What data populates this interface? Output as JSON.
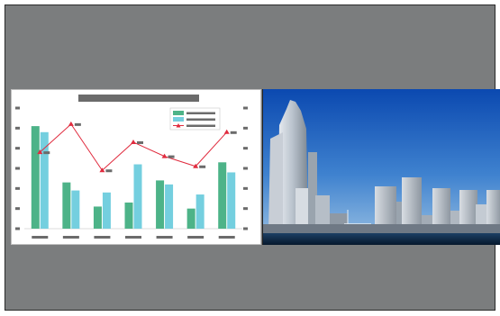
{
  "colors": {
    "screen_bg": "#7b7d7e",
    "pane_bg": "#ffffff",
    "bar_series_a": "#4db388",
    "bar_series_b": "#74cfdf",
    "line_series": "#e02b3e",
    "placeholder_text": "#6b6b6b",
    "sky_top": "#0e4fb6",
    "sky_bottom": "#8db6de",
    "water": "#0c2a4a"
  },
  "left_pane": {
    "content": "chart-thumbnail"
  },
  "right_pane": {
    "content": "city-skyline-photo"
  },
  "chart_data": {
    "type": "bar",
    "categories": [
      "",
      "",
      "",
      "",
      "",
      "",
      ""
    ],
    "title": "",
    "xlabel": "",
    "ylabel": "",
    "ylim": [
      0,
      6
    ],
    "series": [
      {
        "kind": "bar",
        "values": [
          5.1,
          2.3,
          1.1,
          1.3,
          2.4,
          1.0,
          3.3
        ]
      },
      {
        "kind": "bar",
        "values": [
          4.8,
          1.9,
          1.8,
          3.2,
          2.2,
          1.7,
          2.8
        ]
      },
      {
        "kind": "line",
        "marker": "triangle",
        "values": [
          3.8,
          5.2,
          2.9,
          4.3,
          3.6,
          3.1,
          4.8
        ]
      }
    ],
    "legend": {
      "placement": "top-right",
      "entries": 3
    },
    "grid": false,
    "secondary_y_axis": true,
    "text_shown_as_placeholder_bars": true
  }
}
